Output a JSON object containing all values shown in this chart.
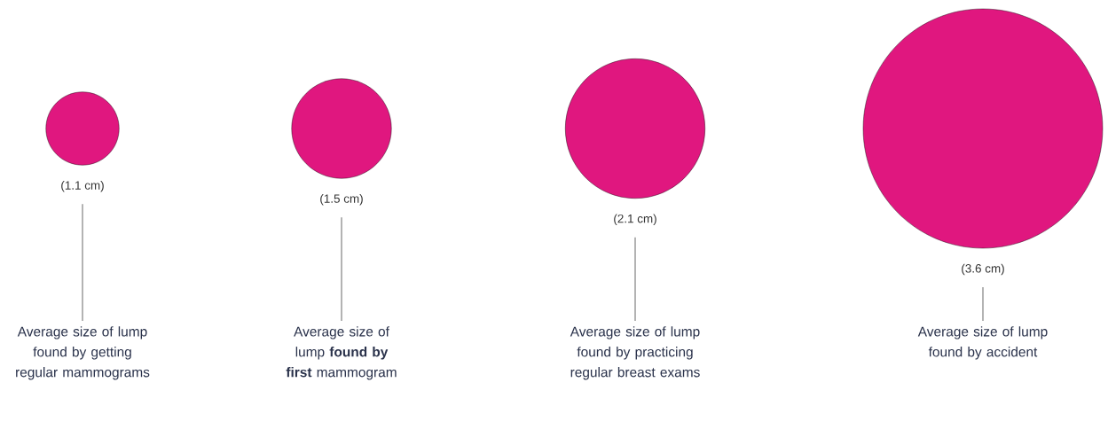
{
  "chart_data": {
    "type": "other",
    "categories": [
      "Average size of lump found by getting regular mammograms",
      "Average size of lump **found by first** mammogram",
      "Average size of lump found by practicing regular breast exams",
      "Average size of lump found by accident"
    ],
    "values": [
      1.1,
      1.5,
      2.1,
      3.6
    ],
    "value_labels": [
      "(1.1 cm)",
      "(1.5 cm)",
      "(2.1 cm)",
      "(3.6 cm)"
    ],
    "colors": [
      "#e0177f",
      "#e0177f",
      "#e0177f",
      "#e0177f"
    ]
  }
}
